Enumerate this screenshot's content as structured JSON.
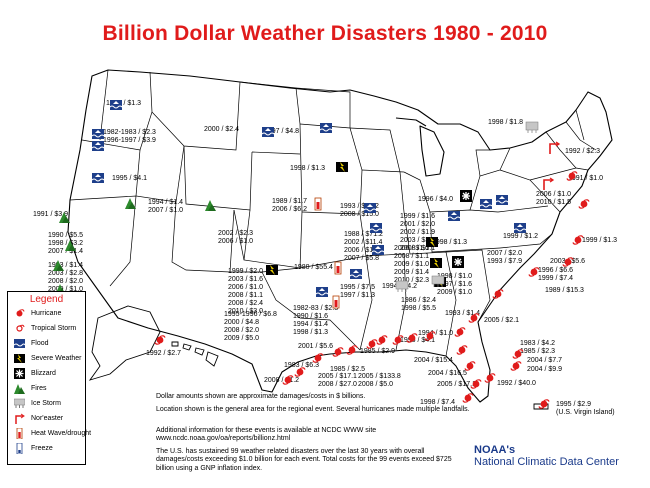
{
  "title": "Billion Dollar Weather Disasters 1980 - 2010",
  "colors": {
    "title": "#e01b1b",
    "hurricane": "#e01b1b",
    "state_outline": "#000000",
    "noaa_text": "#1a3a8a"
  },
  "legend": {
    "title": "Legend",
    "items": [
      {
        "label": "Hurricane",
        "icon": "hurricane-icon"
      },
      {
        "label": "Tropical Storm",
        "icon": "tropical-storm-icon"
      },
      {
        "label": "Flood",
        "icon": "flood-icon"
      },
      {
        "label": "Severe Weather",
        "icon": "severe-weather-icon"
      },
      {
        "label": "Blizzard",
        "icon": "blizzard-icon"
      },
      {
        "label": "Fires",
        "icon": "fire-icon"
      },
      {
        "label": "Ice Storm",
        "icon": "ice-storm-icon"
      },
      {
        "label": "Nor'easter",
        "icon": "noreaster-icon"
      },
      {
        "label": "Heat Wave/drought",
        "icon": "heat-wave-icon"
      },
      {
        "label": "Freeze",
        "icon": "freeze-icon"
      }
    ]
  },
  "map_labels": [
    "1996 / $1.3",
    "1982-1983 / $2.3\n1996-1997 / $3.9",
    "2000 / $2.4",
    "1997 / $4.8",
    "1998 / $1.8",
    "1992 / $2.3",
    "1995 / $4.1",
    "1994 / $1.4\n2007 / $1.0",
    "1991 / $3.9",
    "1989 / $1.7\n2006 / $6.2",
    "1998 / $1.3",
    "1993 / $30.2\n2008 / $15.0",
    "1996 / $4.0",
    "2006 / $1.0\n2010 / $1.5",
    "1991 / $1.0",
    "1990 / $5.5\n1998 / $3.2\n2007 / $1.4",
    "2002 / $2.3\n2006 / $1.0",
    "1999 / $1.6\n2001 / $2.0\n2002 / $1.9\n2003 / $3.4\n2008 / $1.1",
    "1988 / $71.2\n2002 / $11.4\n2006 / $1.1\n2007 / $5.8",
    "1998 / $1.3",
    "1999 / $1.2",
    "1999 / $1.3",
    "2006 / $1.0\n2008 / $1.1\n2009 / $1.0\n2009 / $1.4\n2010 / $2.3",
    "1993 / $1.4\n2003 / $2.8\n2008 / $2.0\n2009 / $1.0",
    "2007 / $2.0\n1993 / $7.9",
    "2003 / $5.6",
    "1996 / $6.6\n1999 / $7.4",
    "1980 / $55.4",
    "1999 / $2.0\n2003 / $1.6\n2006 / $1.0\n2008 / $1.1\n2008 / $2.4\n2010 / $3.0",
    "1995 / $7.5\n1997 / $1.3",
    "1994 / $4.2",
    "1998 / $1.0\n1997 / $1.6\n2009 / $1.0",
    "1989 / $15.3",
    "1986 / $2.4\n1998 / $5.5",
    "1993 / $1.4",
    "1982-83 / $2.3\n1990 / $1.6\n1994 / $1.4\n1998 / $1.3",
    "1995-1996 / $6.8\n2000 / $4.8\n2008 / $2.0\n2009 / $5.0",
    "2005 / $2.1",
    "1994 / $1.0",
    "1983 / $4.2\n1985 / $2.3",
    "1992 / $2.7",
    "2001 / $5.6",
    "1995 / $4.1",
    "1985 / $2.9",
    "2004 / $7.7",
    "2004 / $9.9",
    "1983 / $6.3",
    "2004 / $15.4",
    "1985 / $2.5",
    "2004 / $16.5",
    "2005 / $17.1\n2008 / $27.0",
    "2005 / $133.8\n2008 / $5.0",
    "2008 / $1.2",
    "2005 / $17.1",
    "1992 / $40.0",
    "1998 / $7.4",
    "1995 / $2.9\n(U.S. Virgin Island)"
  ],
  "notes": [
    "Dollar amounts shown are approximate damages/costs in $ billions.",
    "Location shown is the general area for the regional event. Several hurricanes made multiple landfalls.",
    "Additional information for these events is available at NCDC WWW site www.ncdc.noaa.gov/oa/reports/billionz.html",
    "The U.S. has sustained 99 weather related disasters over the last 30 years with overall damages/costs exceeding $1.0 billion for each event. Total costs for the 99 events exceed $725 billion using a GNP inflation index."
  ],
  "org": {
    "name": "NOAA's",
    "center": "National Climatic Data Center"
  }
}
